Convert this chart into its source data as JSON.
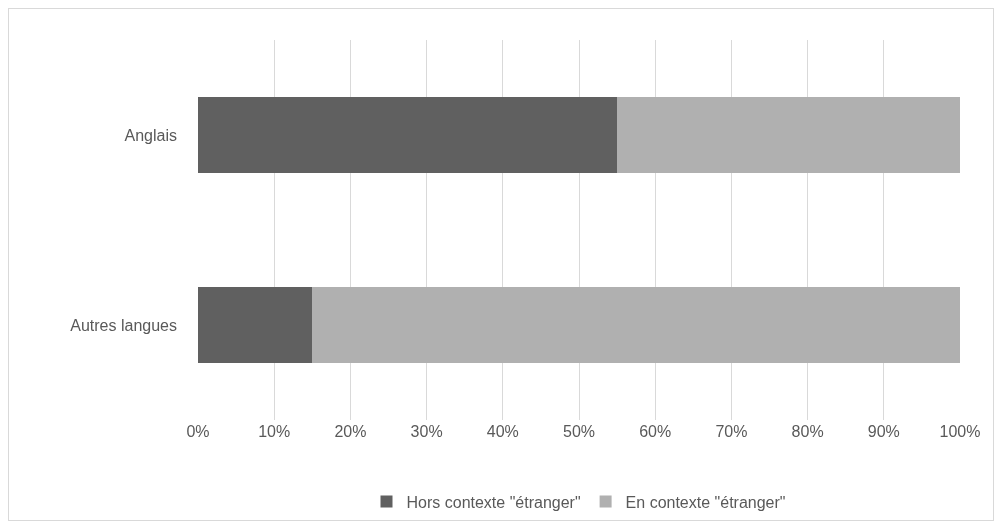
{
  "chart_data": {
    "type": "bar",
    "orientation": "horizontal",
    "stacked": true,
    "categories": [
      "Anglais",
      "Autres langues"
    ],
    "series": [
      {
        "name": "Hors contexte \"étranger\"",
        "color": "#606060",
        "values": [
          55,
          15
        ]
      },
      {
        "name": "En contexte \"étranger\"",
        "color": "#b0b0b0",
        "values": [
          45,
          85
        ]
      }
    ],
    "xlim": [
      0,
      100
    ],
    "xticks": [
      {
        "value": 0,
        "label": "0%"
      },
      {
        "value": 10,
        "label": "10%"
      },
      {
        "value": 20,
        "label": "20%"
      },
      {
        "value": 30,
        "label": "30%"
      },
      {
        "value": 40,
        "label": "40%"
      },
      {
        "value": 50,
        "label": "50%"
      },
      {
        "value": 60,
        "label": "60%"
      },
      {
        "value": 70,
        "label": "70%"
      },
      {
        "value": 80,
        "label": "80%"
      },
      {
        "value": 90,
        "label": "90%"
      },
      {
        "value": 100,
        "label": "100%"
      }
    ],
    "grid": "x",
    "legend": "bottom"
  }
}
